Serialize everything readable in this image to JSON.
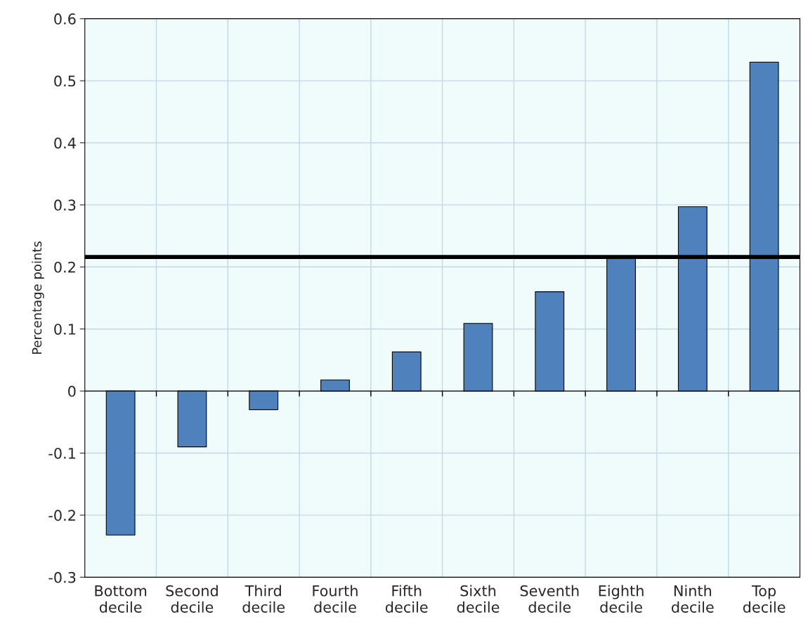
{
  "chart_data": {
    "type": "bar",
    "ylabel": "Percentage points",
    "categories": [
      "Bottom decile",
      "Second decile",
      "Third decile",
      "Fourth decile",
      "Fifth decile",
      "Sixth decile",
      "Seventh decile",
      "Eighth decile",
      "Ninth decile",
      "Top decile"
    ],
    "values": [
      -0.232,
      -0.09,
      -0.03,
      0.018,
      0.063,
      0.109,
      0.16,
      0.216,
      0.297,
      0.53
    ],
    "color": "#4f81bd",
    "ylim": [
      -0.3,
      0.6
    ],
    "yticks": [
      {
        "value": -0.3,
        "label": "-0.3"
      },
      {
        "value": -0.2,
        "label": "-0.2"
      },
      {
        "value": -0.1,
        "label": "-0.1"
      },
      0,
      0.1,
      0.2,
      0.3,
      0.4,
      0.5,
      0.6
    ],
    "ref_lines": [
      {
        "axis": "y",
        "value": 0.216,
        "color": "#000000"
      }
    ],
    "grid": true
  }
}
